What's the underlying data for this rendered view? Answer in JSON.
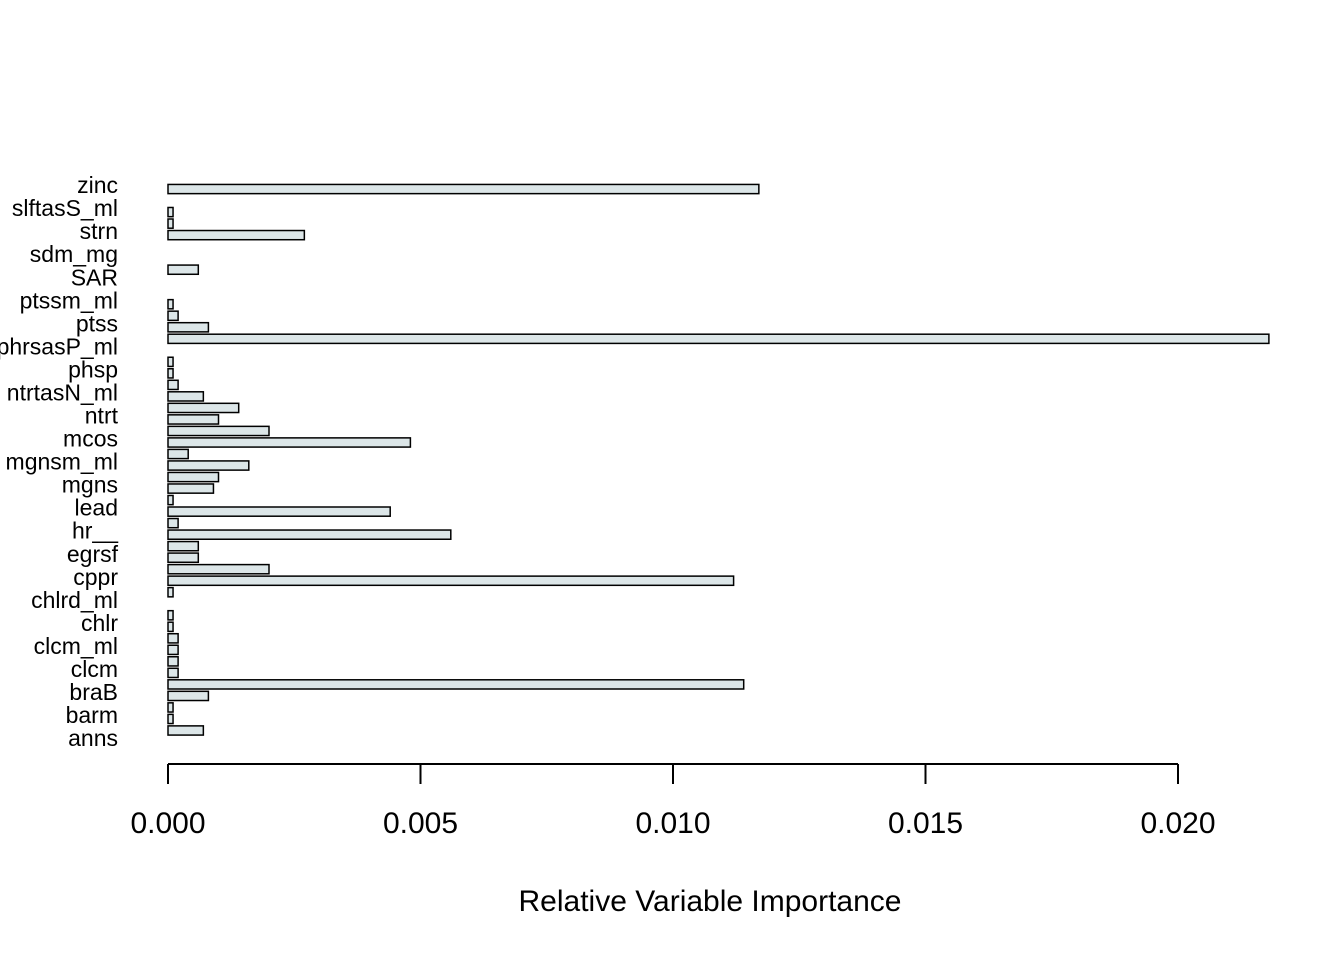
{
  "chart_data": {
    "type": "bar",
    "orientation": "horizontal",
    "title": "",
    "xlabel": "Relative Variable Importance",
    "ylabel": "",
    "xlim": [
      0,
      0.022
    ],
    "x_ticks": [
      "0.000",
      "0.005",
      "0.010",
      "0.015",
      "0.020"
    ],
    "x_tick_values": [
      0,
      0.005,
      0.01,
      0.015,
      0.02
    ],
    "grid": false,
    "colors": {
      "bar_fill": "#dce6e8",
      "bar_stroke": "#000000"
    },
    "category_labels": [
      "anns",
      "barm",
      "braB",
      "clcm",
      "clcm_ml",
      "chlr",
      "chlrd_ml",
      "cppr",
      "egrsf",
      "hr__",
      "lead",
      "mgns",
      "mgnsm_ml",
      "mcos",
      "ntrt",
      "ntrtasN_ml",
      "phsp",
      "phrsasP_ml",
      "ptss",
      "ptssm_ml",
      "SAR",
      "sdm_mg",
      "strn",
      "slftasS_ml",
      "zinc"
    ],
    "values": [
      0,
      0.0007,
      0.0001,
      0.0001,
      0.0008,
      0.0114,
      0.0002,
      0.0002,
      0.0002,
      0.0002,
      0.0001,
      0.0001,
      0,
      0.0001,
      0.0112,
      0.002,
      0.0006,
      0.0006,
      0.0056,
      0.0002,
      0.0044,
      0.0001,
      0.0009,
      0.001,
      0.0016,
      0.0004,
      0.0048,
      0.002,
      0.001,
      0.0014,
      0.0007,
      0.0002,
      0.0001,
      0.0001,
      0,
      0.0218,
      0.0008,
      0.0002,
      0.0001,
      0,
      0,
      0.0006,
      0,
      0,
      0.0027,
      0.0001,
      0.0001,
      0,
      0.0117
    ]
  }
}
